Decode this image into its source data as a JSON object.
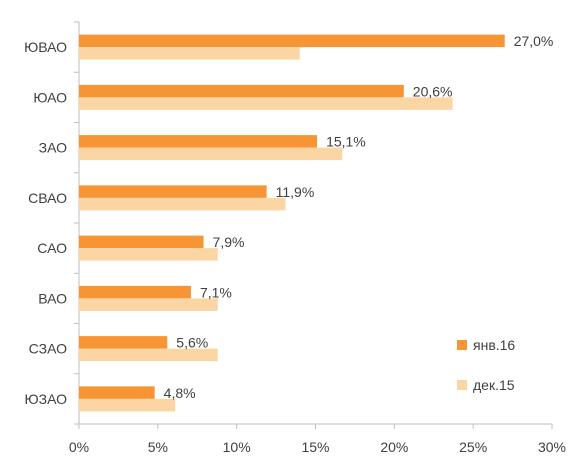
{
  "chart_data": {
    "type": "bar",
    "orientation": "horizontal",
    "categories": [
      "ЮВАО",
      "ЮАО",
      "ЗАО",
      "СВАО",
      "САО",
      "ВАО",
      "СЗАО",
      "ЮЗАО"
    ],
    "series": [
      {
        "name": "янв.16",
        "color": "#f79433",
        "values": [
          27.0,
          20.6,
          15.1,
          11.9,
          7.9,
          7.1,
          5.6,
          4.8
        ],
        "data_labels": [
          "27,0%",
          "20,6%",
          "15,1%",
          "11,9%",
          "7,9%",
          "7,1%",
          "5,6%",
          "4,8%"
        ]
      },
      {
        "name": "дек.15",
        "color": "#fcd5a5",
        "values": [
          14.0,
          23.7,
          16.7,
          13.1,
          8.8,
          8.8,
          8.8,
          6.1
        ]
      }
    ],
    "xlim": [
      0,
      30
    ],
    "x_ticks": [
      0,
      5,
      10,
      15,
      20,
      25,
      30
    ],
    "x_tick_labels": [
      "0%",
      "5%",
      "10%",
      "15%",
      "20%",
      "25%",
      "30%"
    ],
    "grid": false,
    "legend_position": "bottom-right"
  }
}
